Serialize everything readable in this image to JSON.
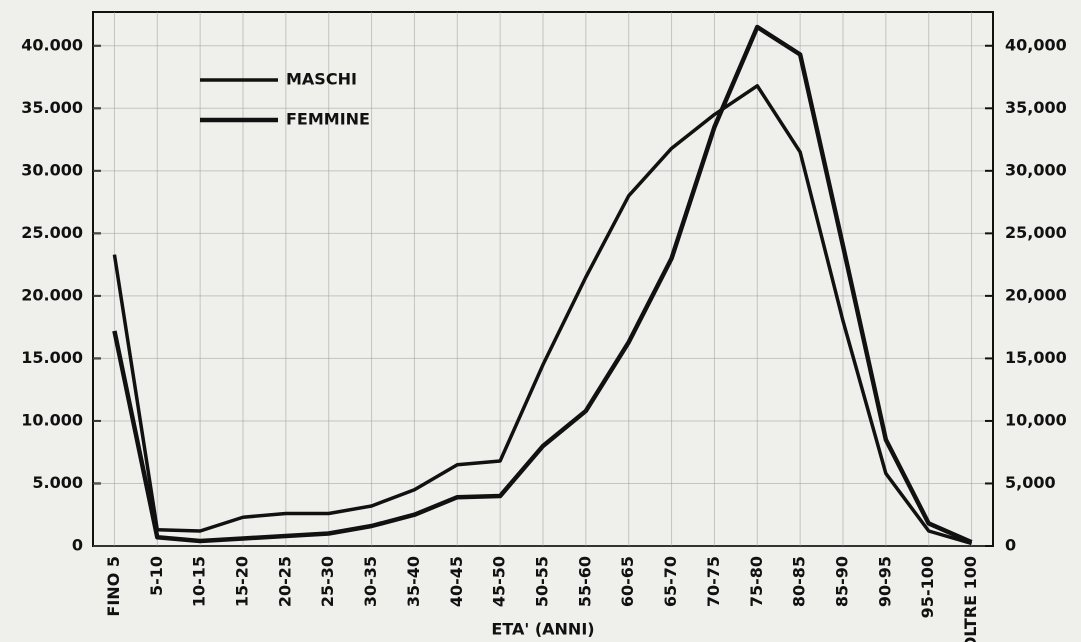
{
  "chart_data": {
    "type": "line",
    "x_label": "ETA' (ANNI)",
    "categories": [
      "FINO 5",
      "5-10",
      "10-15",
      "15-20",
      "20-25",
      "25-30",
      "30-35",
      "35-40",
      "40-45",
      "45-50",
      "50-55",
      "55-60",
      "60-65",
      "65-70",
      "70-75",
      "75-80",
      "80-85",
      "85-90",
      "90-95",
      "95-100",
      "OLTRE 100"
    ],
    "series": [
      {
        "name": "MASCHI",
        "color": "#111111",
        "values": [
          23300,
          1300,
          1200,
          2300,
          2600,
          2600,
          3200,
          4500,
          6500,
          6800,
          14500,
          21500,
          28000,
          31800,
          34500,
          36800,
          31500,
          18000,
          5800,
          1200,
          200
        ]
      },
      {
        "name": "FEMMINE",
        "color": "#111111",
        "values": [
          17200,
          700,
          400,
          600,
          800,
          1000,
          1600,
          2500,
          3900,
          4000,
          8000,
          10800,
          16300,
          23000,
          33500,
          41500,
          39300,
          24000,
          8500,
          1800,
          300
        ]
      }
    ],
    "ylim": [
      0,
      42700
    ],
    "yticks": [
      0,
      {
        "value": 5000,
        "label": "5.000"
      },
      {
        "value": 10000,
        "label": "10.000"
      },
      {
        "value": 15000,
        "label": "15.000"
      },
      {
        "value": 20000,
        "label": "20.000"
      },
      {
        "value": 25000,
        "label": "25.000"
      },
      {
        "value": 30000,
        "label": "30.000"
      },
      {
        "value": 35000,
        "label": "35.000"
      },
      {
        "value": 40000,
        "label": "40.000"
      }
    ],
    "y2lim": [
      0,
      42700
    ],
    "y2ticks": [
      0,
      {
        "value": 5000,
        "label": "5,000"
      },
      {
        "value": 10000,
        "label": "10,000"
      },
      {
        "value": 15000,
        "label": "15,000"
      },
      {
        "value": 20000,
        "label": "20,000"
      },
      {
        "value": 25000,
        "label": "25,000"
      },
      {
        "value": 30000,
        "label": "30,000"
      },
      {
        "value": 35000,
        "label": "35,000"
      },
      {
        "value": 40000,
        "label": "40,000"
      }
    ],
    "grid": true,
    "legend": "upper left"
  }
}
